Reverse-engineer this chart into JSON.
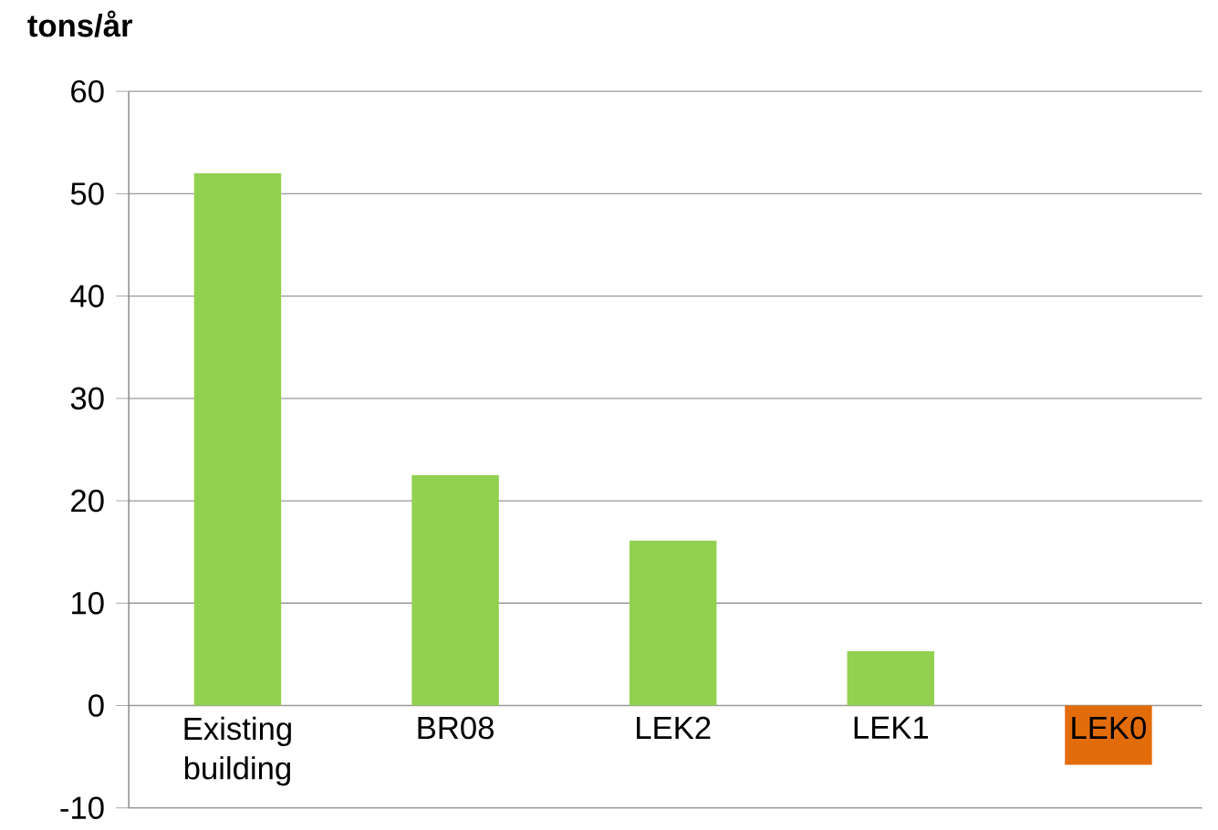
{
  "chart_data": {
    "type": "bar",
    "ylabel": "tons/år",
    "categories": [
      "Existing building",
      "BR08",
      "LEK2",
      "LEK1",
      "LEK0"
    ],
    "values": [
      52,
      22.5,
      16.1,
      5.3,
      -5.8
    ],
    "colors": [
      "#92d050",
      "#92d050",
      "#92d050",
      "#92d050",
      "#e36c0a"
    ],
    "ylim": [
      -10,
      60
    ],
    "yticks": [
      -10,
      0,
      10,
      20,
      30,
      40,
      50,
      60
    ],
    "grid": "y"
  }
}
